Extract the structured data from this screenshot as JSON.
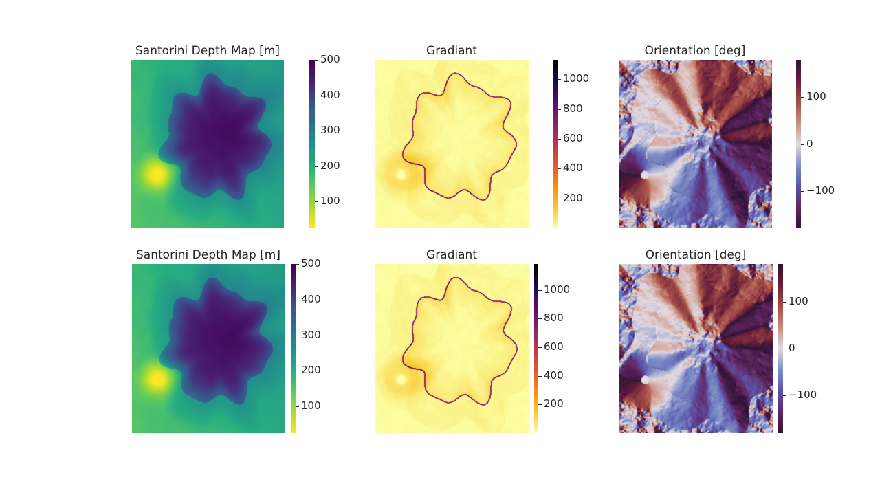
{
  "chart_data": [
    {
      "type": "heatmap",
      "title": "Santorini Depth Map [m]",
      "colormap": "viridis_r",
      "colorbar": {
        "range": [
          25,
          500
        ],
        "ticks": [
          100,
          200,
          300,
          400,
          500
        ]
      }
    },
    {
      "type": "heatmap",
      "title": "Gradiant",
      "colormap": "inferno_r",
      "colorbar": {
        "range": [
          0,
          1130
        ],
        "ticks": [
          200,
          400,
          600,
          800,
          1000
        ]
      }
    },
    {
      "type": "heatmap",
      "title": "Orientation [deg]",
      "colormap": "twilight_shifted",
      "colorbar": {
        "range": [
          -180,
          180
        ],
        "ticks": [
          -100,
          0,
          100
        ]
      }
    },
    {
      "type": "heatmap",
      "title": "Santorini Depth Map [m]",
      "colormap": "viridis_r",
      "colorbar": {
        "range": [
          25,
          500
        ],
        "ticks": [
          100,
          200,
          300,
          400,
          500
        ]
      }
    },
    {
      "type": "heatmap",
      "title": "Gradiant",
      "colormap": "inferno_r",
      "colorbar": {
        "range": [
          0,
          1180
        ],
        "ticks": [
          200,
          400,
          600,
          800,
          1000
        ]
      }
    },
    {
      "type": "heatmap",
      "title": "Orientation [deg]",
      "colormap": "twilight_shifted",
      "colorbar": {
        "range": [
          -180,
          180
        ],
        "ticks": [
          -100,
          0,
          100
        ]
      }
    }
  ]
}
